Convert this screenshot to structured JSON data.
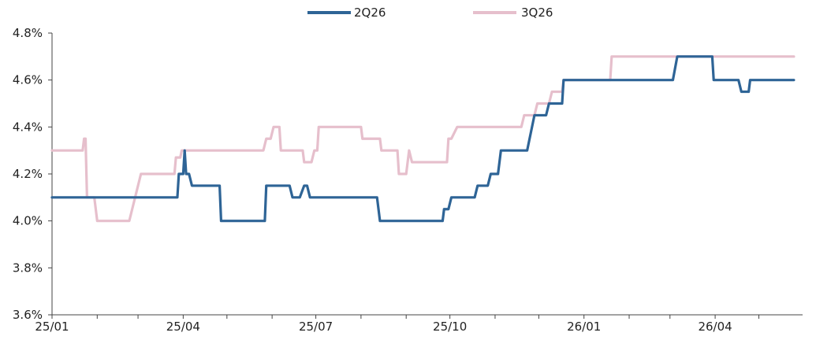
{
  "chart_data": {
    "type": "line",
    "title": "",
    "xlabel": "",
    "ylabel": "",
    "ylim": [
      0.036,
      0.048
    ],
    "y_ticks": [
      "3.6%",
      "3.8%",
      "4.0%",
      "4.2%",
      "4.4%",
      "4.6%",
      "4.8%"
    ],
    "y_tick_values": [
      0.036,
      0.038,
      0.04,
      0.042,
      0.044,
      0.046,
      0.048
    ],
    "x_range": [
      "2025-01-01",
      "2026-05-31"
    ],
    "x_ticks": [
      "25/01",
      "25/04",
      "25/07",
      "25/10",
      "26/01",
      "26/04"
    ],
    "x_tick_dates": [
      "2025-01-01",
      "2025-04-01",
      "2025-07-01",
      "2025-10-01",
      "2026-01-01",
      "2026-04-01"
    ],
    "grid": false,
    "legend_position": "top-center",
    "series": [
      {
        "name": "2Q26",
        "color": "#2e6496",
        "points": [
          [
            "2025-01-01",
            0.041
          ],
          [
            "2025-03-28",
            0.041
          ],
          [
            "2025-03-29",
            0.042
          ],
          [
            "2025-04-01",
            0.042
          ],
          [
            "2025-04-02",
            0.043
          ],
          [
            "2025-04-03",
            0.042
          ],
          [
            "2025-04-05",
            0.042
          ],
          [
            "2025-04-07",
            0.0415
          ],
          [
            "2025-04-26",
            0.0415
          ],
          [
            "2025-04-27",
            0.04
          ],
          [
            "2025-05-27",
            0.04
          ],
          [
            "2025-05-28",
            0.0415
          ],
          [
            "2025-06-13",
            0.0415
          ],
          [
            "2025-06-15",
            0.041
          ],
          [
            "2025-06-20",
            0.041
          ],
          [
            "2025-06-23",
            0.0415
          ],
          [
            "2025-06-25",
            0.0415
          ],
          [
            "2025-06-27",
            0.041
          ],
          [
            "2025-08-12",
            0.041
          ],
          [
            "2025-08-14",
            0.04
          ],
          [
            "2025-09-26",
            0.04
          ],
          [
            "2025-09-27",
            0.0405
          ],
          [
            "2025-09-30",
            0.0405
          ],
          [
            "2025-10-02",
            0.041
          ],
          [
            "2025-10-10",
            0.041
          ],
          [
            "2025-10-18",
            0.041
          ],
          [
            "2025-10-20",
            0.0415
          ],
          [
            "2025-10-27",
            0.0415
          ],
          [
            "2025-10-29",
            0.042
          ],
          [
            "2025-11-03",
            0.042
          ],
          [
            "2025-11-05",
            0.043
          ],
          [
            "2025-11-23",
            0.043
          ],
          [
            "2025-11-28",
            0.0445
          ],
          [
            "2025-12-06",
            0.0445
          ],
          [
            "2025-12-08",
            0.045
          ],
          [
            "2025-12-17",
            0.045
          ],
          [
            "2025-12-18",
            0.046
          ],
          [
            "2026-03-03",
            0.046
          ],
          [
            "2026-03-06",
            0.047
          ],
          [
            "2026-03-30",
            0.047
          ],
          [
            "2026-03-31",
            0.046
          ],
          [
            "2026-04-17",
            0.046
          ],
          [
            "2026-04-19",
            0.0455
          ],
          [
            "2026-04-24",
            0.0455
          ],
          [
            "2026-04-25",
            0.046
          ],
          [
            "2026-05-25",
            0.046
          ]
        ]
      },
      {
        "name": "3Q26",
        "color": "#e6bfcc",
        "points": [
          [
            "2025-01-01",
            0.043
          ],
          [
            "2025-01-22",
            0.043
          ],
          [
            "2025-01-23",
            0.0435
          ],
          [
            "2025-01-24",
            0.0435
          ],
          [
            "2025-01-25",
            0.041
          ],
          [
            "2025-01-30",
            0.041
          ],
          [
            "2025-02-01",
            0.04
          ],
          [
            "2025-02-23",
            0.04
          ],
          [
            "2025-03-03",
            0.042
          ],
          [
            "2025-03-26",
            0.042
          ],
          [
            "2025-03-27",
            0.0427
          ],
          [
            "2025-03-30",
            0.0427
          ],
          [
            "2025-03-31",
            0.043
          ],
          [
            "2025-05-26",
            0.043
          ],
          [
            "2025-05-28",
            0.0435
          ],
          [
            "2025-05-31",
            0.0435
          ],
          [
            "2025-06-02",
            0.044
          ],
          [
            "2025-06-06",
            0.044
          ],
          [
            "2025-06-07",
            0.043
          ],
          [
            "2025-06-22",
            0.043
          ],
          [
            "2025-06-23",
            0.0425
          ],
          [
            "2025-06-28",
            0.0425
          ],
          [
            "2025-06-30",
            0.043
          ],
          [
            "2025-07-02",
            0.043
          ],
          [
            "2025-07-03",
            0.044
          ],
          [
            "2025-08-01",
            0.044
          ],
          [
            "2025-08-02",
            0.0435
          ],
          [
            "2025-08-14",
            0.0435
          ],
          [
            "2025-08-15",
            0.043
          ],
          [
            "2025-08-26",
            0.043
          ],
          [
            "2025-08-27",
            0.042
          ],
          [
            "2025-09-01",
            0.042
          ],
          [
            "2025-09-03",
            0.043
          ],
          [
            "2025-09-05",
            0.0425
          ],
          [
            "2025-09-29",
            0.0425
          ],
          [
            "2025-09-30",
            0.0435
          ],
          [
            "2025-10-02",
            0.0435
          ],
          [
            "2025-10-06",
            0.044
          ],
          [
            "2025-11-19",
            0.044
          ],
          [
            "2025-11-21",
            0.0445
          ],
          [
            "2025-11-28",
            0.0445
          ],
          [
            "2025-11-30",
            0.045
          ],
          [
            "2025-12-08",
            0.045
          ],
          [
            "2025-12-10",
            0.0455
          ],
          [
            "2025-12-17",
            0.0455
          ],
          [
            "2025-12-18",
            0.046
          ],
          [
            "2026-01-19",
            0.046
          ],
          [
            "2026-01-20",
            0.047
          ],
          [
            "2026-05-25",
            0.047
          ]
        ]
      }
    ]
  }
}
